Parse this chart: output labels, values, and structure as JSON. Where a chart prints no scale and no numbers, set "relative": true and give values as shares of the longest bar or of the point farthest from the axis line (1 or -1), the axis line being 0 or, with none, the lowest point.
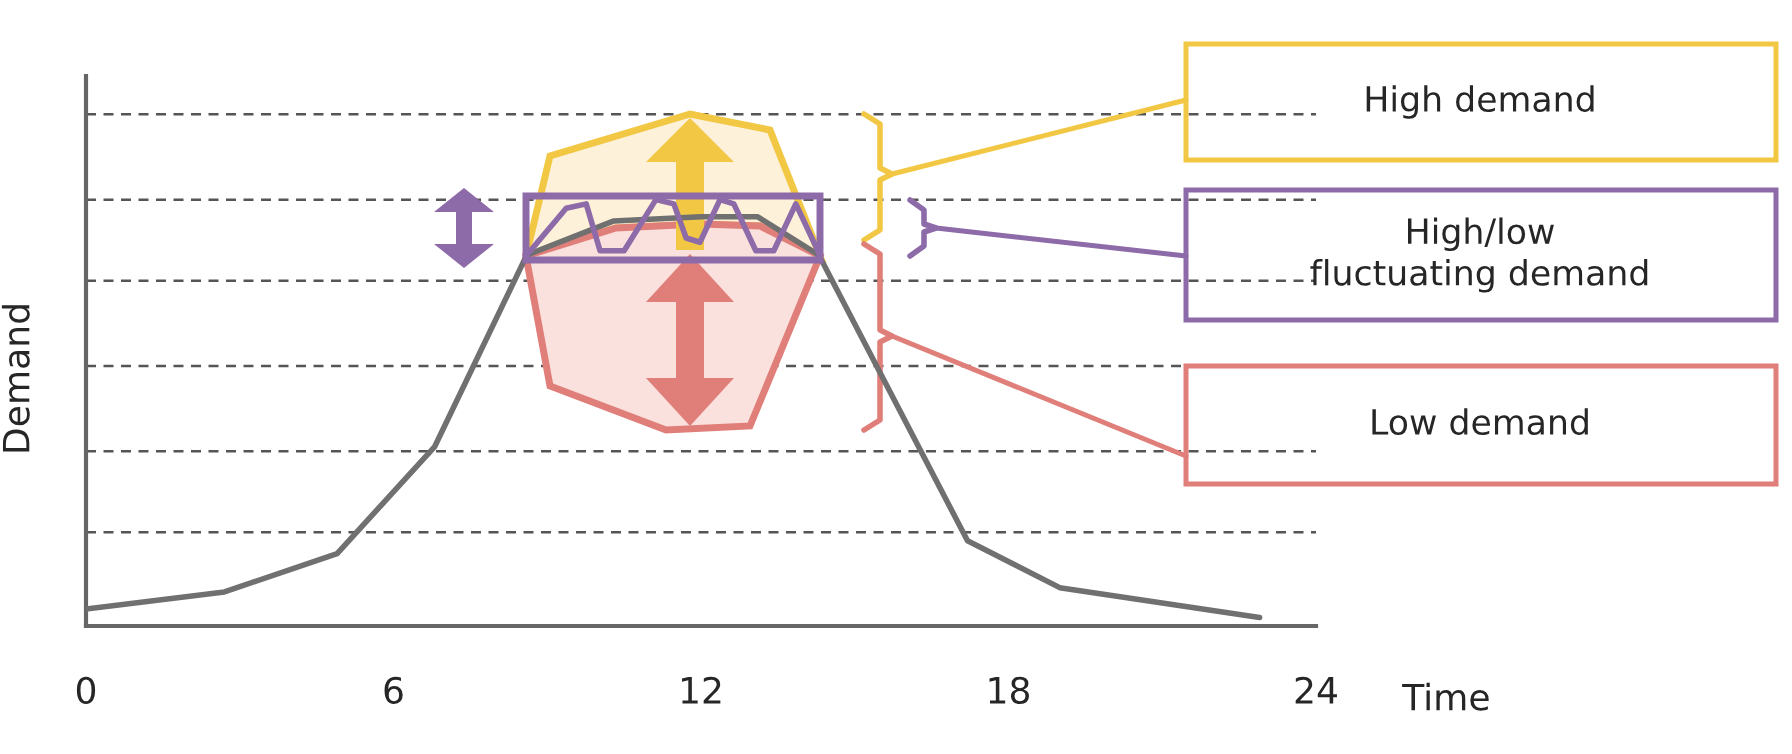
{
  "chart_data": {
    "type": "line",
    "xlabel": "Time",
    "ylabel": "Demand",
    "relative": true,
    "xlim": [
      0,
      24
    ],
    "xticks": [
      0,
      6,
      12,
      18,
      24
    ],
    "marker": "none",
    "line_style": "solid",
    "x": [
      0,
      2.7,
      4.9,
      6.8,
      8.6,
      10.3,
      12,
      13.1,
      14.3,
      17.2,
      19,
      22.9
    ],
    "series": [
      {
        "color": "#707070",
        "values": [
          0.04,
          0.08,
          0.17,
          0.42,
          0.87,
          0.95,
          0.96,
          0.96,
          0.87,
          0.2,
          0.09,
          0.02
        ]
      },
      {
        "color": "#8d6aa8",
        "x": [
          8.6,
          9.37,
          9.76,
          10.03,
          10.5,
          11.12,
          11.47,
          11.71,
          11.98,
          12.37,
          12.64,
          13.07,
          13.42,
          13.85,
          14.32
        ],
        "values": [
          0.87,
          0.98,
          0.99,
          0.88,
          0.88,
          1,
          0.99,
          0.91,
          0.9,
          1,
          0.99,
          0.88,
          0.88,
          0.99,
          0.87
        ]
      }
    ],
    "ref_lines": [
      {
        "axis": "y",
        "value": 1.2,
        "color": "#555555",
        "line_style": "dashed"
      },
      {
        "axis": "y",
        "value": 1.0,
        "color": "#555555",
        "line_style": "dashed"
      },
      {
        "axis": "y",
        "value": 0.81,
        "color": "#555555",
        "line_style": "dashed"
      },
      {
        "axis": "y",
        "value": 0.61,
        "color": "#555555",
        "line_style": "dashed"
      },
      {
        "axis": "y",
        "value": 0.41,
        "color": "#555555",
        "line_style": "dashed"
      },
      {
        "axis": "y",
        "value": 0.22,
        "color": "#555555",
        "line_style": "dashed"
      }
    ],
    "annotations": [
      "High demand",
      "High/low\nfluctuating demand",
      "Low demand"
    ]
  }
}
